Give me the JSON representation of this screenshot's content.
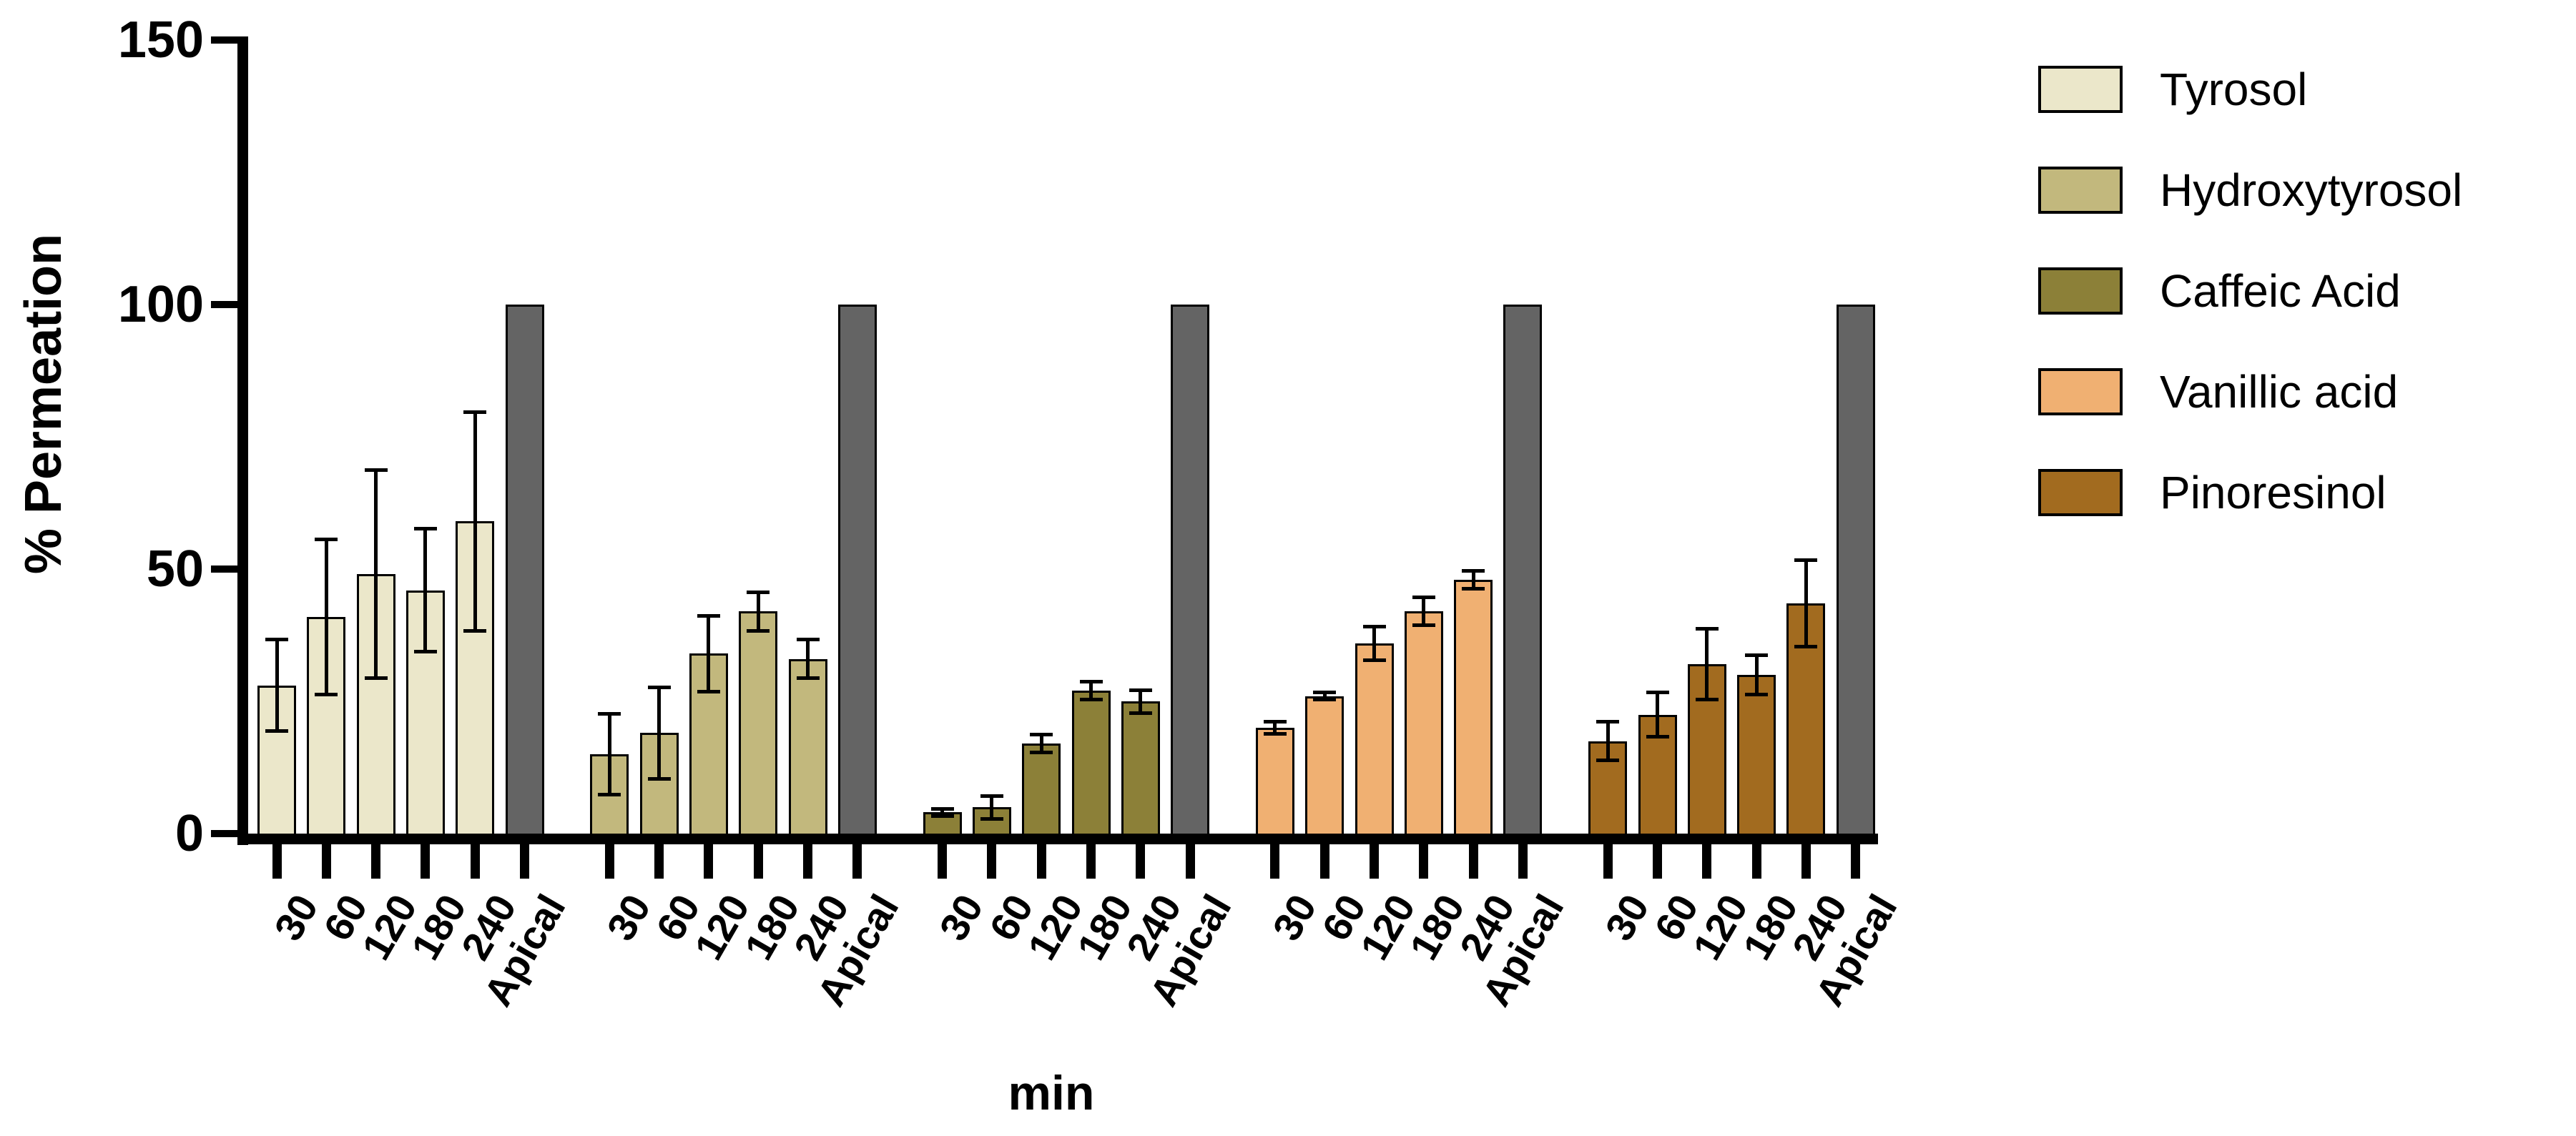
{
  "figure": {
    "ylabel": "% Permeation",
    "xlabel": "min"
  },
  "chart_data": {
    "type": "bar",
    "title": "",
    "ylabel": "% Permeation",
    "xlabel": "min",
    "ylim": [
      0,
      150
    ],
    "yticks": [
      0,
      50,
      100,
      150
    ],
    "grid": false,
    "legend_position": "top-right",
    "grouping": "one group per compound; bars are time points plus Apical reference",
    "categories": [
      "30",
      "60",
      "120",
      "180",
      "240",
      "Apical"
    ],
    "apical_bar": {
      "label": "Apical",
      "value": 100,
      "color": "#646464"
    },
    "error_bar_style": "black lines with caps, plus/minus",
    "bar_outline_color": "#000000",
    "series": [
      {
        "name": "Tyrosol",
        "color": "#EBE7CA",
        "values": [
          28,
          41,
          49,
          46,
          59
        ],
        "errors": [
          9,
          15,
          20,
          12,
          21
        ]
      },
      {
        "name": "Hydroxytyrosol",
        "color": "#C2B87D",
        "values": [
          15,
          19,
          34,
          42,
          33
        ],
        "errors": [
          8,
          9,
          7.5,
          4,
          4
        ]
      },
      {
        "name": "Caffeic Acid",
        "color": "#8C8038",
        "values": [
          4,
          5,
          17,
          27,
          25
        ],
        "errors": [
          1,
          2.5,
          2,
          2,
          2.5
        ]
      },
      {
        "name": "Vanillic acid",
        "color": "#F0B072",
        "values": [
          20,
          26,
          36,
          42,
          48
        ],
        "errors": [
          1.5,
          1,
          3.5,
          3,
          2
        ]
      },
      {
        "name": "Pinoresinol",
        "color": "#A26B1F",
        "values": [
          17.5,
          22.5,
          32,
          30,
          43.5
        ],
        "errors": [
          4,
          4.5,
          7,
          4,
          8.5
        ]
      }
    ]
  }
}
